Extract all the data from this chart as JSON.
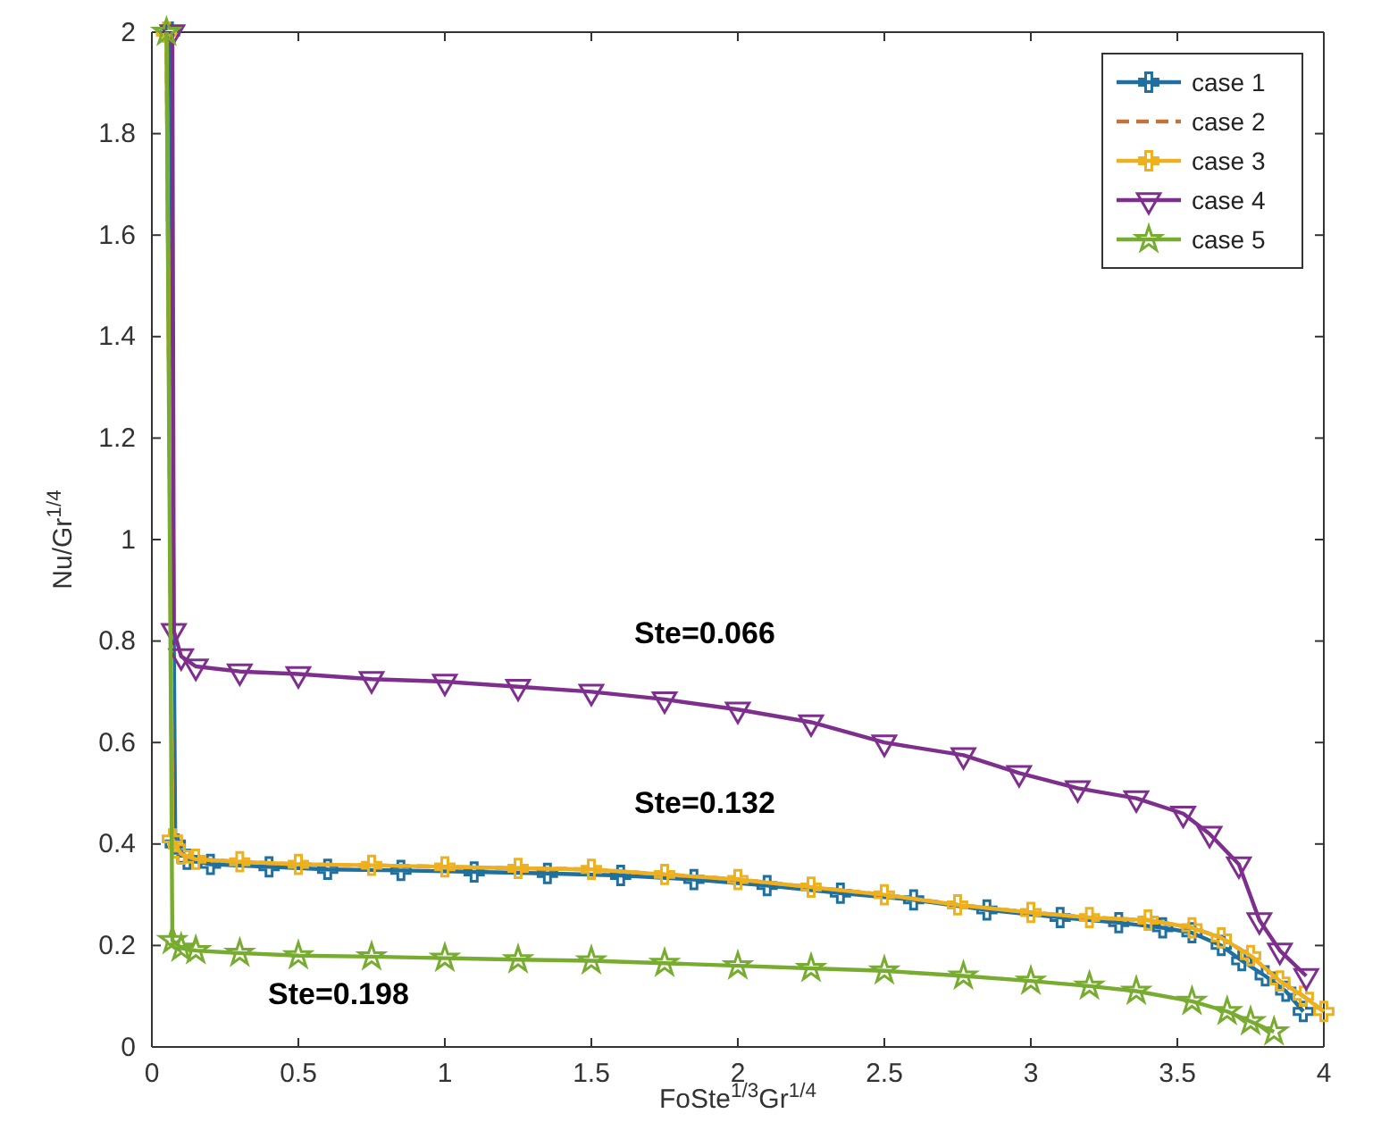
{
  "chart_data": {
    "type": "line",
    "xlabel": "FoSte$^{1/3}$Gr$^{1/4}$",
    "ylabel": "Nu/Gr$^{1/4}$",
    "xlim": [
      0,
      4
    ],
    "xticks": [
      0,
      0.5,
      1,
      1.5,
      2,
      2.5,
      3,
      3.5,
      4
    ],
    "ylim": [
      0,
      2
    ],
    "yticks": [
      0,
      0.2,
      0.4,
      0.6,
      0.8,
      1,
      1.2,
      1.4,
      1.6,
      1.8,
      2
    ],
    "grid": false,
    "legend": "top right",
    "series": [
      {
        "name": "case 1",
        "color": "#1f6f9f",
        "marker": "cross",
        "line_style": "solid",
        "x": [
          0.06,
          0.08,
          0.12,
          0.2,
          0.4,
          0.6,
          0.85,
          1.1,
          1.35,
          1.6,
          1.85,
          2.1,
          2.35,
          2.6,
          2.85,
          3.1,
          3.3,
          3.45,
          3.55,
          3.65,
          3.72,
          3.8,
          3.87,
          3.93
        ],
        "values": [
          2,
          0.4,
          0.37,
          0.36,
          0.355,
          0.35,
          0.348,
          0.345,
          0.342,
          0.338,
          0.33,
          0.318,
          0.303,
          0.29,
          0.27,
          0.255,
          0.245,
          0.235,
          0.225,
          0.2,
          0.17,
          0.14,
          0.11,
          0.07
        ]
      },
      {
        "name": "case 2",
        "color": "#c0743a",
        "marker": "none",
        "line_style": "dashed",
        "x": [
          0.05,
          0.07,
          0.1,
          0.15,
          0.3,
          0.5,
          0.75,
          1,
          1.25,
          1.5,
          1.75,
          2,
          2.25,
          2.5,
          2.75,
          3,
          3.2,
          3.4,
          3.55,
          3.65,
          3.75,
          3.85,
          3.93,
          4
        ],
        "values": [
          2,
          0.41,
          0.38,
          0.37,
          0.365,
          0.36,
          0.358,
          0.355,
          0.352,
          0.35,
          0.34,
          0.33,
          0.315,
          0.3,
          0.28,
          0.265,
          0.255,
          0.25,
          0.235,
          0.215,
          0.18,
          0.13,
          0.1,
          0.07
        ]
      },
      {
        "name": "case 3",
        "color": "#edb120",
        "marker": "cross",
        "line_style": "solid",
        "x": [
          0.05,
          0.07,
          0.1,
          0.15,
          0.3,
          0.5,
          0.75,
          1,
          1.25,
          1.5,
          1.75,
          2,
          2.25,
          2.5,
          2.75,
          3,
          3.2,
          3.4,
          3.55,
          3.65,
          3.75,
          3.85,
          3.93,
          4
        ],
        "values": [
          2,
          0.41,
          0.38,
          0.37,
          0.365,
          0.36,
          0.358,
          0.355,
          0.352,
          0.35,
          0.34,
          0.33,
          0.315,
          0.3,
          0.28,
          0.265,
          0.255,
          0.25,
          0.235,
          0.215,
          0.18,
          0.13,
          0.1,
          0.07
        ]
      },
      {
        "name": "case 4",
        "color": "#7e2f8e",
        "marker": "triangle",
        "line_style": "solid",
        "x": [
          0.07,
          0.075,
          0.1,
          0.15,
          0.3,
          0.5,
          0.75,
          1,
          1.25,
          1.5,
          1.75,
          2,
          2.25,
          2.5,
          2.77,
          2.96,
          3.16,
          3.36,
          3.52,
          3.61,
          3.71,
          3.78,
          3.85,
          3.94
        ],
        "values": [
          2,
          0.82,
          0.77,
          0.75,
          0.74,
          0.735,
          0.725,
          0.72,
          0.71,
          0.7,
          0.685,
          0.665,
          0.64,
          0.6,
          0.575,
          0.54,
          0.51,
          0.49,
          0.46,
          0.42,
          0.36,
          0.25,
          0.19,
          0.14
        ]
      },
      {
        "name": "case 5",
        "color": "#77ac30",
        "marker": "star",
        "line_style": "solid",
        "x": [
          0.05,
          0.07,
          0.1,
          0.15,
          0.3,
          0.5,
          0.75,
          1,
          1.25,
          1.5,
          1.75,
          2,
          2.25,
          2.5,
          2.77,
          3,
          3.2,
          3.36,
          3.55,
          3.67,
          3.75,
          3.83
        ],
        "values": [
          2,
          0.21,
          0.195,
          0.19,
          0.185,
          0.18,
          0.178,
          0.175,
          0.172,
          0.17,
          0.165,
          0.16,
          0.155,
          0.15,
          0.14,
          0.13,
          0.12,
          0.11,
          0.09,
          0.07,
          0.05,
          0.03
        ]
      }
    ],
    "annotations": [
      "Ste=0.066",
      "Ste=0.132",
      "Ste=0.198"
    ]
  }
}
